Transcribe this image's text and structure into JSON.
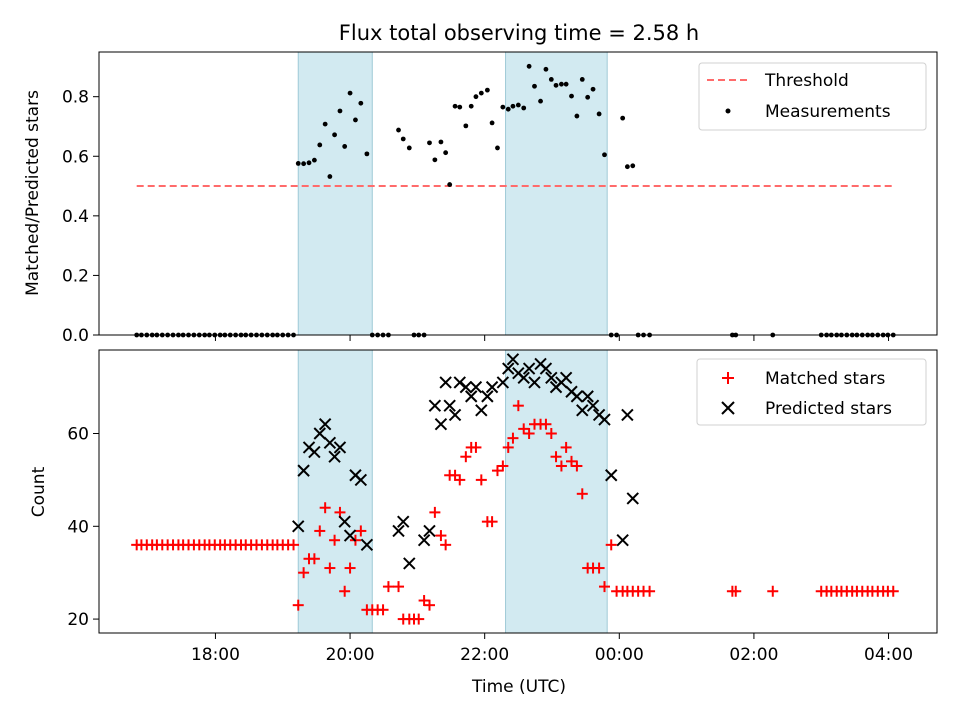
{
  "chart_data": [
    {
      "type": "scatter",
      "title": "Flux total observing time = 2.58 h",
      "xlabel": "",
      "ylabel": "Matched/Predicted stars",
      "x_unit": "hours UTC (values >= 24 are after midnight)",
      "xlim": [
        16.27,
        28.72
      ],
      "ylim": [
        0.0,
        0.95
      ],
      "yticks": [
        0.0,
        0.2,
        0.4,
        0.6,
        0.8
      ],
      "yticklabels": [
        "0.0",
        "0.2",
        "0.4",
        "0.6",
        "0.8"
      ],
      "xticks": [
        18,
        20,
        22,
        24,
        26,
        28
      ],
      "xticklabels": [
        "",
        "",
        "",
        "",
        "",
        ""
      ],
      "shaded_intervals": [
        [
          19.23,
          20.33
        ],
        [
          22.31,
          23.82
        ]
      ],
      "threshold": {
        "name": "Threshold",
        "value": 0.5,
        "x_start": 16.83,
        "x_end": 28.1,
        "color": "#ff6b6b"
      },
      "series": [
        {
          "name": "Measurements",
          "color": "#000000",
          "x": [
            16.83,
            16.9,
            16.98,
            17.06,
            17.13,
            17.21,
            17.29,
            17.37,
            17.45,
            17.52,
            17.6,
            17.68,
            17.76,
            17.84,
            17.91,
            17.99,
            18.07,
            18.14,
            18.22,
            18.3,
            18.38,
            18.45,
            18.53,
            18.61,
            18.69,
            18.77,
            18.85,
            18.92,
            19.0,
            19.08,
            19.16,
            19.23,
            19.31,
            19.39,
            19.47,
            19.55,
            19.63,
            19.7,
            19.77,
            19.85,
            19.92,
            20.0,
            20.08,
            20.16,
            20.25,
            20.33,
            20.41,
            20.49,
            20.57,
            20.72,
            20.79,
            20.88,
            20.95,
            21.02,
            21.1,
            21.18,
            21.26,
            21.35,
            21.42,
            21.48,
            21.56,
            21.63,
            21.72,
            21.8,
            21.87,
            21.95,
            22.04,
            22.11,
            22.19,
            22.27,
            22.35,
            22.42,
            22.5,
            22.58,
            22.66,
            22.74,
            22.83,
            22.91,
            22.99,
            23.06,
            23.14,
            23.21,
            23.29,
            23.37,
            23.45,
            23.53,
            23.61,
            23.7,
            23.78,
            23.88,
            23.96,
            24.05,
            24.12,
            24.2,
            24.28,
            24.36,
            24.45,
            25.68,
            25.73,
            26.28,
            27.0,
            27.08,
            27.15,
            27.23,
            27.3,
            27.38,
            27.46,
            27.53,
            27.61,
            27.69,
            27.76,
            27.84,
            27.92,
            27.99,
            28.07
          ],
          "y": [
            0,
            0,
            0,
            0,
            0,
            0,
            0,
            0,
            0,
            0,
            0,
            0,
            0,
            0,
            0,
            0,
            0,
            0,
            0,
            0,
            0,
            0,
            0,
            0,
            0,
            0,
            0,
            0,
            0,
            0,
            0,
            0.576,
            0.575,
            0.578,
            0.587,
            0.638,
            0.708,
            0.532,
            0.672,
            0.752,
            0.633,
            0.812,
            0.722,
            0.778,
            0.608,
            0,
            0,
            0,
            0,
            0.688,
            0.658,
            0.628,
            0,
            0,
            0,
            0.645,
            0.588,
            0.648,
            0.612,
            0.505,
            0.768,
            0.765,
            0.702,
            0.768,
            0.8,
            0.812,
            0.822,
            0.712,
            0.628,
            0.765,
            0.758,
            0.768,
            0.772,
            0.762,
            0.902,
            0.835,
            0.785,
            0.892,
            0.858,
            0.838,
            0.842,
            0.842,
            0.802,
            0.735,
            0.858,
            0.798,
            0.825,
            0.742,
            0.605,
            0,
            0,
            0.728,
            0.565,
            0.568,
            0,
            0,
            0,
            0,
            0,
            0,
            0,
            0,
            0,
            0,
            0,
            0,
            0,
            0,
            0,
            0,
            0,
            0,
            0,
            0,
            0
          ]
        }
      ],
      "legend": {
        "placement": "upper-right",
        "entries": [
          "Threshold",
          "Measurements"
        ]
      }
    },
    {
      "type": "scatter",
      "title": "",
      "xlabel": "Time (UTC)",
      "ylabel": "Count",
      "x_unit": "hours UTC (values >= 24 are after midnight)",
      "xlim": [
        16.27,
        28.72
      ],
      "ylim": [
        17,
        78
      ],
      "yticks": [
        20,
        40,
        60
      ],
      "yticklabels": [
        "20",
        "40",
        "60"
      ],
      "xticks": [
        18,
        20,
        22,
        24,
        26,
        28
      ],
      "xticklabels": [
        "18:00",
        "20:00",
        "22:00",
        "00:00",
        "02:00",
        "04:00"
      ],
      "shaded_intervals": [
        [
          19.23,
          20.33
        ],
        [
          22.31,
          23.82
        ]
      ],
      "series": [
        {
          "name": "Matched stars",
          "color": "#ff0000",
          "marker": "+",
          "x": [
            16.83,
            16.9,
            16.98,
            17.06,
            17.13,
            17.21,
            17.29,
            17.37,
            17.45,
            17.52,
            17.6,
            17.68,
            17.76,
            17.84,
            17.91,
            17.99,
            18.07,
            18.14,
            18.22,
            18.3,
            18.38,
            18.45,
            18.53,
            18.61,
            18.69,
            18.77,
            18.85,
            18.92,
            19.0,
            19.08,
            19.16,
            19.23,
            19.31,
            19.39,
            19.47,
            19.55,
            19.63,
            19.7,
            19.77,
            19.85,
            19.92,
            20.0,
            20.08,
            20.16,
            20.25,
            20.33,
            20.41,
            20.49,
            20.57,
            20.72,
            20.79,
            20.88,
            20.95,
            21.02,
            21.1,
            21.18,
            21.26,
            21.35,
            21.42,
            21.48,
            21.56,
            21.63,
            21.72,
            21.8,
            21.87,
            21.95,
            22.04,
            22.11,
            22.19,
            22.27,
            22.35,
            22.42,
            22.5,
            22.58,
            22.66,
            22.74,
            22.83,
            22.91,
            22.99,
            23.06,
            23.14,
            23.21,
            23.29,
            23.37,
            23.45,
            23.53,
            23.61,
            23.7,
            23.78,
            23.88,
            23.96,
            24.05,
            24.12,
            24.2,
            24.28,
            24.36,
            24.45,
            25.68,
            25.73,
            26.28,
            27.0,
            27.08,
            27.15,
            27.23,
            27.3,
            27.38,
            27.46,
            27.53,
            27.61,
            27.69,
            27.76,
            27.84,
            27.92,
            27.99,
            28.07
          ],
          "y": [
            36,
            36,
            36,
            36,
            36,
            36,
            36,
            36,
            36,
            36,
            36,
            36,
            36,
            36,
            36,
            36,
            36,
            36,
            36,
            36,
            36,
            36,
            36,
            36,
            36,
            36,
            36,
            36,
            36,
            36,
            36,
            23,
            30,
            33,
            33,
            39,
            44,
            31,
            37,
            43,
            26,
            31,
            37,
            39,
            22,
            22,
            22,
            22,
            27,
            27,
            20,
            20,
            20,
            20,
            24,
            23,
            43,
            38,
            36,
            51,
            51,
            50,
            55,
            57,
            57,
            50,
            41,
            41,
            52,
            53,
            57,
            59,
            66,
            61,
            60,
            62,
            62,
            62,
            60,
            55,
            53,
            57,
            54,
            53,
            47,
            31,
            31,
            31,
            27,
            36,
            26,
            26,
            26,
            26,
            26,
            26,
            26,
            26,
            26,
            26,
            26,
            26,
            26,
            26,
            26,
            26,
            26,
            26,
            26,
            26,
            26,
            26,
            26,
            26,
            26
          ]
        },
        {
          "name": "Predicted stars",
          "color": "#000000",
          "marker": "x",
          "x": [
            19.23,
            19.31,
            19.39,
            19.47,
            19.55,
            19.63,
            19.7,
            19.77,
            19.85,
            19.92,
            20.0,
            20.08,
            20.16,
            20.25,
            20.72,
            20.79,
            20.88,
            21.1,
            21.18,
            21.26,
            21.35,
            21.42,
            21.48,
            21.56,
            21.63,
            21.72,
            21.8,
            21.87,
            21.95,
            22.04,
            22.11,
            22.27,
            22.35,
            22.42,
            22.5,
            22.58,
            22.66,
            22.74,
            22.83,
            22.91,
            22.99,
            23.06,
            23.14,
            23.21,
            23.29,
            23.37,
            23.45,
            23.53,
            23.61,
            23.7,
            23.78,
            23.88,
            24.05,
            24.12,
            24.2
          ],
          "y": [
            40,
            52,
            57,
            56,
            60,
            62,
            58,
            55,
            57,
            41,
            38,
            51,
            50,
            36,
            39,
            41,
            32,
            37,
            39,
            66,
            62,
            71,
            66,
            64,
            71,
            70,
            68,
            70,
            65,
            68,
            70,
            71,
            74,
            76,
            73,
            72,
            74,
            71,
            75,
            74,
            72,
            70,
            71,
            72,
            69,
            68,
            65,
            68,
            66,
            64,
            63,
            51,
            37,
            64,
            46
          ]
        }
      ],
      "legend": {
        "placement": "upper-right",
        "entries": [
          "Matched stars",
          "Predicted stars"
        ]
      }
    }
  ]
}
